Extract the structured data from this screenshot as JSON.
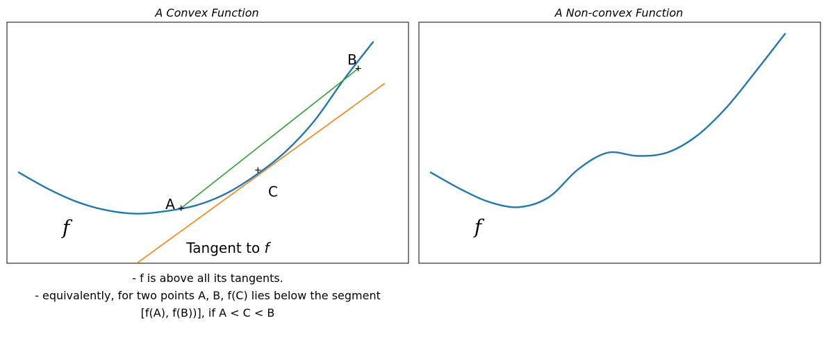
{
  "chart_data": [
    {
      "type": "line",
      "title": "A Convex Function",
      "xlabel": "",
      "ylabel": "",
      "axis_ticks_visible": false,
      "xlim": [
        -2.2,
        4.6
      ],
      "ylim": [
        -1.5,
        5.8
      ],
      "series": [
        {
          "name": "f",
          "kind": "curve",
          "color": "#1f77b4",
          "x": [
            -2,
            -1.5,
            -1,
            -0.5,
            0,
            0.5,
            1,
            1.5,
            2,
            2.5,
            3,
            3.5,
            4
          ],
          "y": [
            1.25,
            0.75,
            0.35,
            0.1,
            0,
            0.08,
            0.25,
            0.6,
            1.15,
            1.85,
            2.8,
            4.05,
            5.2
          ]
        },
        {
          "name": "Tangent to f",
          "kind": "tangent",
          "color": "#ff7f0e",
          "x": [
            0,
            4.2
          ],
          "y": [
            -1.5,
            3.95
          ]
        },
        {
          "name": "chord",
          "kind": "chord",
          "color": "#2ca02c",
          "x": [
            0.75,
            3.75
          ],
          "y": [
            0.17,
            4.4
          ]
        }
      ],
      "points": [
        {
          "label": "A",
          "x": 0.75,
          "y": 0.17
        },
        {
          "label": "B",
          "x": 3.75,
          "y": 4.4
        },
        {
          "label": "C",
          "x": 2.05,
          "y": 1.32
        }
      ],
      "annotations": {
        "function_label": "f",
        "tangent_label_text": "Tangent to ",
        "tangent_label_var": "f"
      }
    },
    {
      "type": "line",
      "title": "A Non-convex Function",
      "xlabel": "",
      "ylabel": "",
      "axis_ticks_visible": false,
      "xlim": [
        -2.2,
        4.6
      ],
      "ylim": [
        -1.5,
        5.8
      ],
      "series": [
        {
          "name": "f",
          "kind": "curve",
          "color": "#1f77b4",
          "x": [
            -2,
            -1.5,
            -1,
            -0.5,
            0,
            0.5,
            1,
            1.5,
            2,
            2.5,
            3,
            3.5,
            4
          ],
          "y": [
            1.25,
            0.75,
            0.35,
            0.2,
            0.5,
            1.35,
            1.85,
            1.75,
            1.85,
            2.35,
            3.2,
            4.3,
            5.45
          ]
        }
      ],
      "annotations": {
        "function_label": "f"
      }
    }
  ],
  "caption": {
    "line1": "- f is above all its tangents.",
    "line2": "- equivalently, for two points A, B, f(C) lies below the segment",
    "line3": "[f(A), f(B))], if A < C < B"
  }
}
